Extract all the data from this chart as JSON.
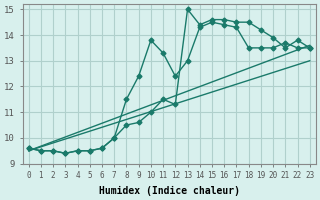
{
  "xlabel": "Humidex (Indice chaleur)",
  "xlim": [
    -0.5,
    23.5
  ],
  "ylim": [
    9,
    15.2
  ],
  "yticks": [
    9,
    10,
    11,
    12,
    13,
    14,
    15
  ],
  "xticks": [
    0,
    1,
    2,
    3,
    4,
    5,
    6,
    7,
    8,
    9,
    10,
    11,
    12,
    13,
    14,
    15,
    16,
    17,
    18,
    19,
    20,
    21,
    22,
    23
  ],
  "bg_color": "#d8f0ed",
  "grid_color": "#b0d0cc",
  "line_color": "#1a7a6a",
  "line1_x": [
    0,
    1,
    2,
    3,
    4,
    5,
    6,
    7,
    8,
    9,
    10,
    11,
    12,
    13,
    14,
    15,
    16,
    17,
    18,
    19,
    20,
    21,
    22,
    23
  ],
  "line1_y": [
    9.6,
    9.5,
    9.5,
    9.4,
    9.5,
    9.5,
    9.6,
    10.0,
    10.5,
    10.6,
    11.0,
    11.5,
    11.3,
    15.0,
    14.4,
    14.6,
    14.6,
    14.5,
    14.5,
    14.2,
    13.9,
    13.5,
    13.8,
    13.5
  ],
  "line2_x": [
    0,
    1,
    2,
    3,
    4,
    5,
    6,
    7,
    8,
    9,
    10,
    11,
    12,
    13,
    14,
    15,
    16,
    17,
    18,
    19,
    20,
    21,
    22,
    23
  ],
  "line2_y": [
    9.6,
    9.5,
    9.5,
    9.4,
    9.5,
    9.5,
    9.6,
    10.0,
    11.5,
    12.4,
    13.8,
    13.3,
    12.4,
    13.0,
    14.3,
    14.5,
    14.4,
    14.3,
    13.5,
    13.5,
    13.5,
    13.7,
    13.5,
    13.5
  ],
  "line3_x": [
    0,
    23
  ],
  "line3_y": [
    9.5,
    13.6
  ],
  "line4_x": [
    0,
    23
  ],
  "line4_y": [
    9.5,
    13.0
  ]
}
